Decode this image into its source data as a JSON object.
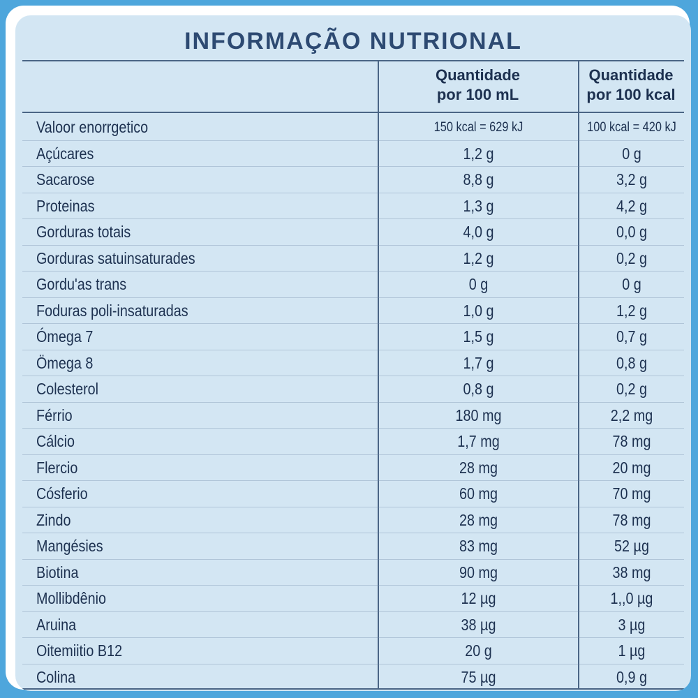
{
  "title": "INFORMAÇÃO NUTRIONAL",
  "table": {
    "headers": [
      "Quantidade\npor 100 mL",
      "Quantidade\npor 100 kcal"
    ],
    "rows": [
      [
        "Valoor enorrgetico",
        "150 kcal = 629 kJ",
        "100 kcal = 420 kJ"
      ],
      [
        "Açúcares",
        "1,2 g",
        "0 g"
      ],
      [
        "Sacarose",
        "8,8 g",
        "3,2 g"
      ],
      [
        "Proteinas",
        "1,3 g",
        "4,2 g"
      ],
      [
        "Gorduras totais",
        "4,0 g",
        "0,0 g"
      ],
      [
        "Gorduras satuinsaturades",
        "1,2 g",
        "0,2 g"
      ],
      [
        "Gordu'as trans",
        "0 g",
        "0 g"
      ],
      [
        "Foduras poli-insaturadas",
        "1,0 g",
        "1,2 g"
      ],
      [
        "Ómega 7",
        "1,5 g",
        "0,7 g"
      ],
      [
        "Ömega 8",
        "1,7 g",
        "0,8 g"
      ],
      [
        "Colesterol",
        "0,8 g",
        "0,2 g"
      ],
      [
        "Férrio",
        "180 mg",
        "2,2 mg"
      ],
      [
        "Cálcio",
        "1,7 mg",
        "78 mg"
      ],
      [
        "Flercio",
        "28 mg",
        "20 mg"
      ],
      [
        "Cósferio",
        "60 mg",
        "70 mg"
      ],
      [
        "Zindo",
        "28 mg",
        "78 mg"
      ],
      [
        "Mangésies",
        "83 mg",
        "52 µg"
      ],
      [
        "Biotina",
        "90 mg",
        "38 mg"
      ],
      [
        "Mollibdênio",
        "12 µg",
        "1,,0 µg"
      ],
      [
        "Aruina",
        "38 µg",
        "3 µg"
      ],
      [
        "Oitemiitio B12",
        "20 g",
        "1 µg"
      ],
      [
        "Colina",
        "75 µg",
        "0,9 g"
      ]
    ]
  }
}
